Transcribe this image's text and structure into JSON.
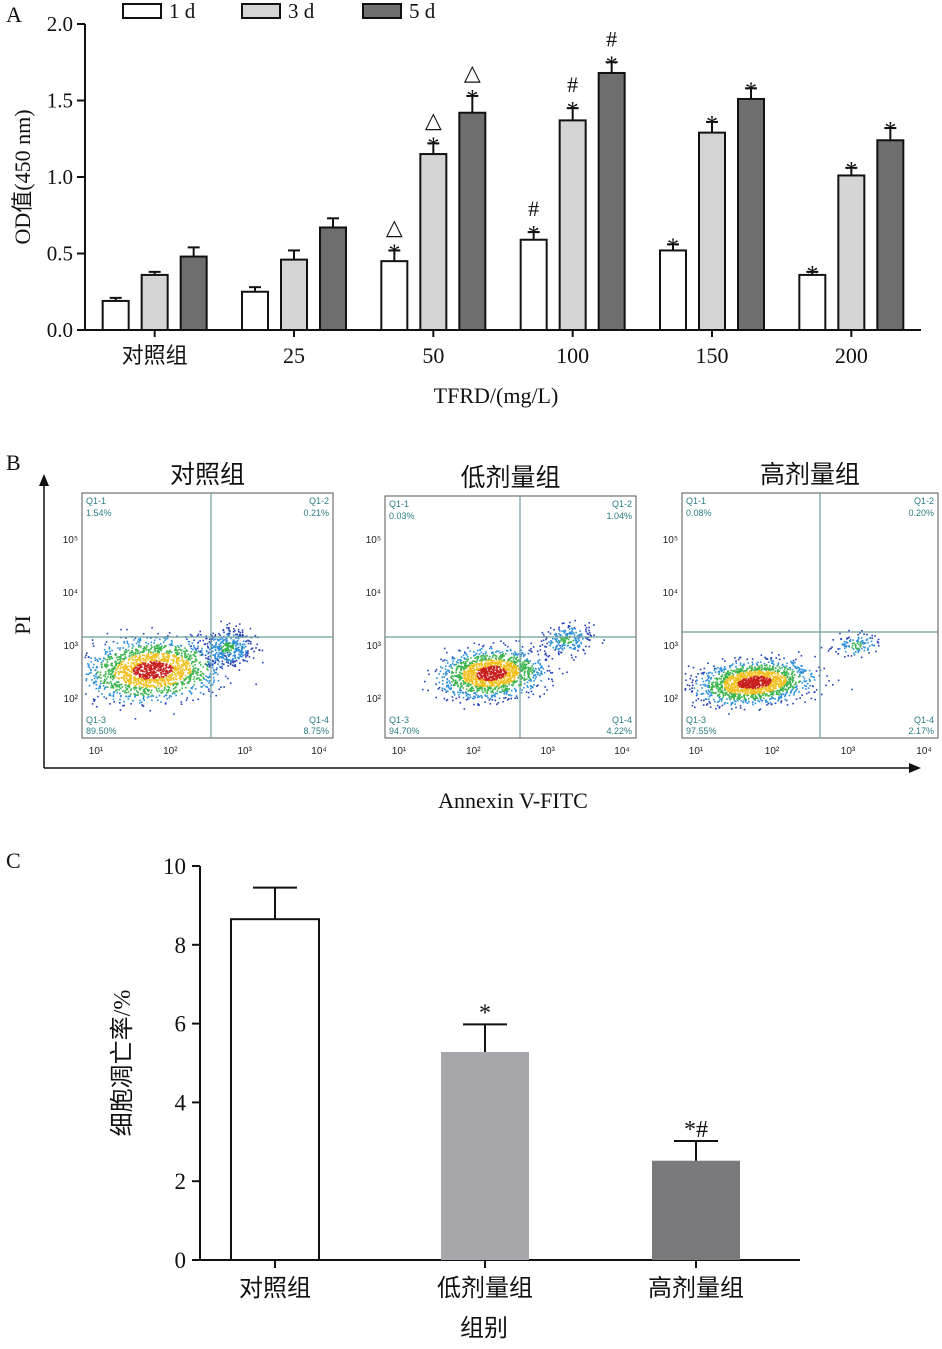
{
  "chart_data": [
    {
      "panel": "A",
      "type": "bar",
      "categories": [
        "对照组",
        "25",
        "50",
        "100",
        "150",
        "200"
      ],
      "series": [
        {
          "name": "1 d",
          "values": [
            0.19,
            0.25,
            0.45,
            0.59,
            0.52,
            0.36
          ],
          "errors": [
            0.02,
            0.03,
            0.07,
            0.05,
            0.04,
            0.02
          ],
          "marks": [
            "",
            "",
            "*\n△",
            "*\n#",
            "*",
            "*"
          ]
        },
        {
          "name": "3 d",
          "values": [
            0.36,
            0.46,
            1.15,
            1.37,
            1.29,
            1.01
          ],
          "errors": [
            0.02,
            0.06,
            0.07,
            0.08,
            0.07,
            0.05
          ],
          "marks": [
            "",
            "",
            "*\n△",
            "*\n#",
            "*",
            "*"
          ]
        },
        {
          "name": "5 d",
          "values": [
            0.48,
            0.67,
            1.42,
            1.68,
            1.51,
            1.24
          ],
          "errors": [
            0.06,
            0.06,
            0.11,
            0.07,
            0.07,
            0.08
          ],
          "marks": [
            "",
            "",
            "*\n△",
            "*\n#",
            "*",
            "*"
          ]
        }
      ],
      "colors": [
        "#ffffff",
        "#d4d4d4",
        "#6e6e6e"
      ],
      "xlabel": "TFRD/(mg/L)",
      "ylabel": "OD值(450 nm)",
      "ylim": [
        0,
        2.0
      ],
      "yticks": [
        "0.0",
        "0.5",
        "1.0",
        "1.5",
        "2.0"
      ],
      "legend": "top"
    },
    {
      "panel": "B",
      "type": "scatter",
      "subtype": "flow-cytometry-quadrant",
      "xlabel": "Annexin V-FITC",
      "ylabel": "PI",
      "xticks": [
        "10¹",
        "10²",
        "10³",
        "10⁴"
      ],
      "yticks": [
        "10²",
        "10³",
        "10⁴",
        "10⁵"
      ],
      "panels": [
        {
          "title": "对照组",
          "q1": {
            "label": "Q1-1",
            "value": "1.54%"
          },
          "q2": {
            "label": "Q1-2",
            "value": "0.21%"
          },
          "q3": {
            "label": "Q1-3",
            "value": "89.50%"
          },
          "q4": {
            "label": "Q1-4",
            "value": "8.75%"
          }
        },
        {
          "title": "低剂量组",
          "q1": {
            "label": "Q1-1",
            "value": "0.03%"
          },
          "q2": {
            "label": "Q1-2",
            "value": "1.04%"
          },
          "q3": {
            "label": "Q1-3",
            "value": "94.70%"
          },
          "q4": {
            "label": "Q1-4",
            "value": "4.22%"
          }
        },
        {
          "title": "高剂量组",
          "q1": {
            "label": "Q1-1",
            "value": "0.08%"
          },
          "q2": {
            "label": "Q1-2",
            "value": "0.20%"
          },
          "q3": {
            "label": "Q1-3",
            "value": "97.55%"
          },
          "q4": {
            "label": "Q1-4",
            "value": "2.17%"
          }
        }
      ]
    },
    {
      "panel": "C",
      "type": "bar",
      "categories": [
        "对照组",
        "低剂量组",
        "高剂量组"
      ],
      "values": [
        8.65,
        5.28,
        2.52
      ],
      "errors": [
        0.8,
        0.7,
        0.5
      ],
      "marks": [
        "",
        "*",
        "*#"
      ],
      "colors": [
        "#ffffff",
        "#a7a7ab",
        "#7a7a7c"
      ],
      "xlabel": "组别",
      "ylabel": "细胞凋亡率/%",
      "ylim": [
        0,
        10
      ],
      "yticks": [
        "0",
        "2",
        "4",
        "6",
        "8",
        "10"
      ]
    }
  ]
}
